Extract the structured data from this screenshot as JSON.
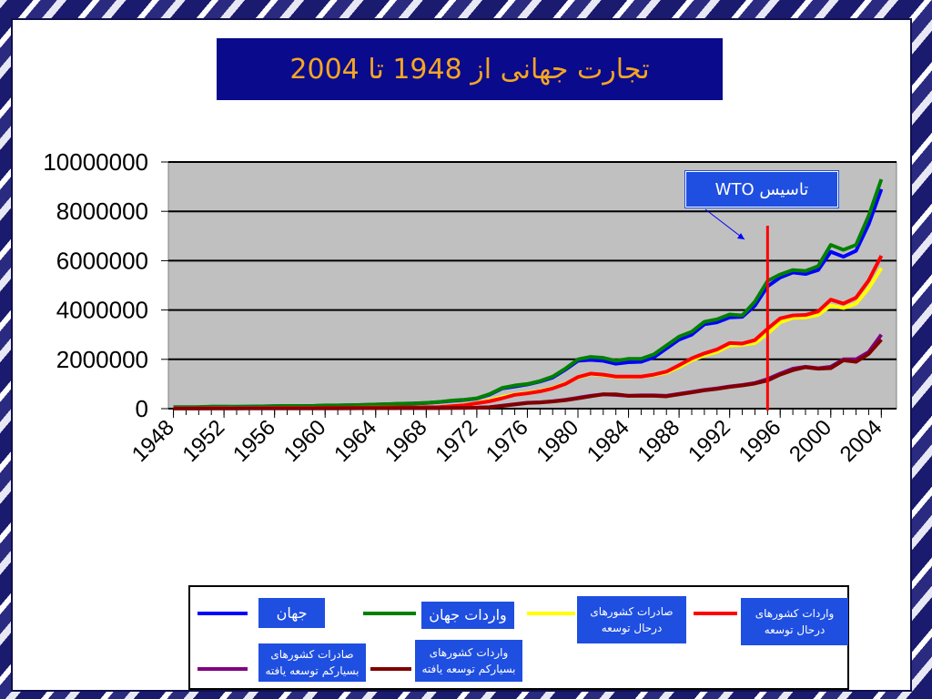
{
  "chart_data": {
    "type": "line",
    "title": "تجارت جهانی از 1948 تا 2004",
    "x": [
      1948,
      1949,
      1950,
      1951,
      1952,
      1953,
      1954,
      1955,
      1956,
      1957,
      1958,
      1959,
      1960,
      1961,
      1962,
      1963,
      1964,
      1965,
      1966,
      1967,
      1968,
      1969,
      1970,
      1971,
      1972,
      1973,
      1974,
      1975,
      1976,
      1977,
      1978,
      1979,
      1980,
      1981,
      1982,
      1983,
      1984,
      1985,
      1986,
      1987,
      1988,
      1989,
      1990,
      1991,
      1992,
      1993,
      1994,
      1995,
      1996,
      1997,
      1998,
      1999,
      2000,
      2001,
      2002,
      2003,
      2004
    ],
    "xlim": [
      1947.6,
      2005.2
    ],
    "xticks": [
      1948,
      1952,
      1956,
      1960,
      1964,
      1968,
      1972,
      1976,
      1980,
      1984,
      1988,
      1992,
      1996,
      2000,
      2004
    ],
    "ylim": [
      0,
      10000000
    ],
    "yticks": [
      0,
      2000000,
      4000000,
      6000000,
      8000000,
      10000000
    ],
    "grid": true,
    "annotation": {
      "text": "تاسیس WTO",
      "x": 1995,
      "color": "#ff0000"
    },
    "series": [
      {
        "name": "جهان",
        "color": "#0000ff",
        "values": [
          58000,
          58000,
          62000,
          80000,
          78000,
          80000,
          82000,
          90000,
          100000,
          108000,
          104000,
          110000,
          126000,
          130000,
          138000,
          150000,
          168000,
          182000,
          200000,
          210000,
          232000,
          266000,
          314000,
          350000,
          410000,
          570000,
          820000,
          900000,
          980000,
          1100000,
          1260000,
          1580000,
          1940000,
          1980000,
          1940000,
          1820000,
          1880000,
          1900000,
          2080000,
          2440000,
          2800000,
          3000000,
          3420000,
          3500000,
          3700000,
          3720000,
          4180000,
          4960000,
          5320000,
          5520000,
          5460000,
          5620000,
          6360000,
          6160000,
          6400000,
          7480000,
          8900000
        ]
      },
      {
        "name": "واردات جهان",
        "color": "#008000",
        "values": [
          62000,
          62000,
          64000,
          82000,
          82000,
          78000,
          82000,
          92000,
          100000,
          110000,
          106000,
          112000,
          132000,
          136000,
          144000,
          154000,
          172000,
          186000,
          204000,
          212000,
          236000,
          270000,
          328000,
          360000,
          420000,
          590000,
          840000,
          940000,
          1000000,
          1120000,
          1300000,
          1620000,
          2000000,
          2100000,
          2060000,
          1940000,
          2020000,
          2020000,
          2200000,
          2560000,
          2920000,
          3120000,
          3520000,
          3620000,
          3820000,
          3780000,
          4340000,
          5180000,
          5440000,
          5620000,
          5580000,
          5780000,
          6640000,
          6440000,
          6640000,
          7820000,
          9300000
        ]
      },
      {
        "name": "صادرات کشورهای درحال توسعه",
        "color": "#ffff00",
        "values": [
          22000,
          22000,
          24000,
          28000,
          27000,
          25000,
          27000,
          29000,
          30000,
          32000,
          31000,
          32000,
          35000,
          36000,
          38000,
          40000,
          44000,
          47000,
          50000,
          52000,
          56000,
          62000,
          110000,
          150000,
          230000,
          340000,
          480000,
          580000,
          640000,
          720000,
          840000,
          1020000,
          1260000,
          1400000,
          1360000,
          1280000,
          1280000,
          1300000,
          1360000,
          1460000,
          1680000,
          1960000,
          2160000,
          2300000,
          2560000,
          2580000,
          2660000,
          3040000,
          3500000,
          3680000,
          3700000,
          3800000,
          4180000,
          4080000,
          4260000,
          4880000,
          5700000
        ]
      },
      {
        "name": "واردات کشورهای درحال توسعه",
        "color": "#ff0000",
        "values": [
          20000,
          20000,
          22000,
          26000,
          26000,
          24000,
          26000,
          28000,
          30000,
          33000,
          33000,
          33000,
          36000,
          38000,
          40000,
          42000,
          46000,
          50000,
          54000,
          56000,
          60000,
          66000,
          100000,
          140000,
          220000,
          300000,
          420000,
          560000,
          620000,
          700000,
          820000,
          1000000,
          1280000,
          1420000,
          1380000,
          1300000,
          1300000,
          1300000,
          1380000,
          1500000,
          1760000,
          2040000,
          2240000,
          2400000,
          2660000,
          2640000,
          2780000,
          3240000,
          3660000,
          3780000,
          3800000,
          3940000,
          4420000,
          4260000,
          4500000,
          5200000,
          6200000
        ]
      },
      {
        "name": "صادرات کشورهای بسیارکم توسعه یافته",
        "color": "#800080",
        "values": [
          10000,
          10000,
          11000,
          12000,
          12000,
          12000,
          13000,
          13000,
          14000,
          14000,
          14000,
          15000,
          16000,
          16000,
          17000,
          18000,
          19000,
          20000,
          22000,
          23000,
          24000,
          26000,
          30000,
          34000,
          40000,
          60000,
          120000,
          180000,
          240000,
          260000,
          300000,
          360000,
          440000,
          520000,
          580000,
          560000,
          520000,
          540000,
          540000,
          520000,
          600000,
          680000,
          760000,
          820000,
          900000,
          960000,
          1040000,
          1200000,
          1420000,
          1620000,
          1700000,
          1640000,
          1700000,
          2000000,
          2000000,
          2300000,
          3000000
        ]
      },
      {
        "name": "واردات کشورهای بسیارکم توسعه یافته",
        "color": "#800000",
        "values": [
          10000,
          10000,
          10000,
          11000,
          11000,
          11000,
          12000,
          12000,
          13000,
          13000,
          13000,
          14000,
          15000,
          15000,
          16000,
          17000,
          18000,
          19000,
          21000,
          22000,
          23000,
          25000,
          28000,
          32000,
          38000,
          56000,
          110000,
          170000,
          230000,
          250000,
          290000,
          340000,
          420000,
          500000,
          580000,
          580000,
          520000,
          520000,
          520000,
          500000,
          580000,
          660000,
          740000,
          800000,
          880000,
          940000,
          1020000,
          1140000,
          1380000,
          1560000,
          1680000,
          1620000,
          1640000,
          1960000,
          1900000,
          2220000,
          2800000
        ]
      }
    ]
  }
}
